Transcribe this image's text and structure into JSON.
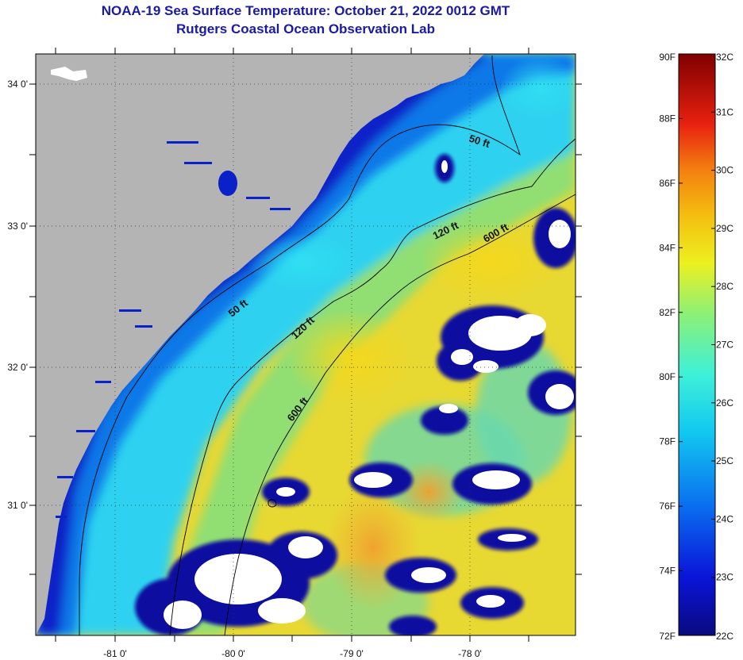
{
  "header": {
    "title": "NOAA-19 Sea Surface Temperature:  October 21, 2022 0012 GMT",
    "subtitle": "Rutgers Coastal Ocean Observation Lab"
  },
  "map": {
    "lat_labels": [
      "34 0'",
      "33 0'",
      "32 0'",
      "31 0'"
    ],
    "lon_labels": [
      "-81 0'",
      "-80 0'",
      "-79 0'",
      "-78 0'"
    ],
    "contours": [
      {
        "depth": "50 ft",
        "instances": 2
      },
      {
        "depth": "120 ft",
        "instances": 2
      },
      {
        "depth": "600 ft",
        "instances": 2
      }
    ],
    "contour_label_text": [
      "50 ft",
      "50 ft",
      "120 ft",
      "120 ft",
      "600 ft",
      "600 ft"
    ],
    "colors": {
      "land": "#b4b4b4",
      "cloud": "#ffffff",
      "cold": "#0a10a0",
      "mid": "#2ad0f0",
      "warm": "#f2d21e"
    }
  },
  "colorbar": {
    "fahrenheit": [
      "90F",
      "88F",
      "86F",
      "84F",
      "82F",
      "80F",
      "78F",
      "76F",
      "74F",
      "72F"
    ],
    "celsius": [
      "32C",
      "31C",
      "30C",
      "29C",
      "28C",
      "27C",
      "26C",
      "25C",
      "24C",
      "23C",
      "22C"
    ],
    "range_f": [
      72,
      90
    ],
    "range_c": [
      22,
      32
    ]
  }
}
